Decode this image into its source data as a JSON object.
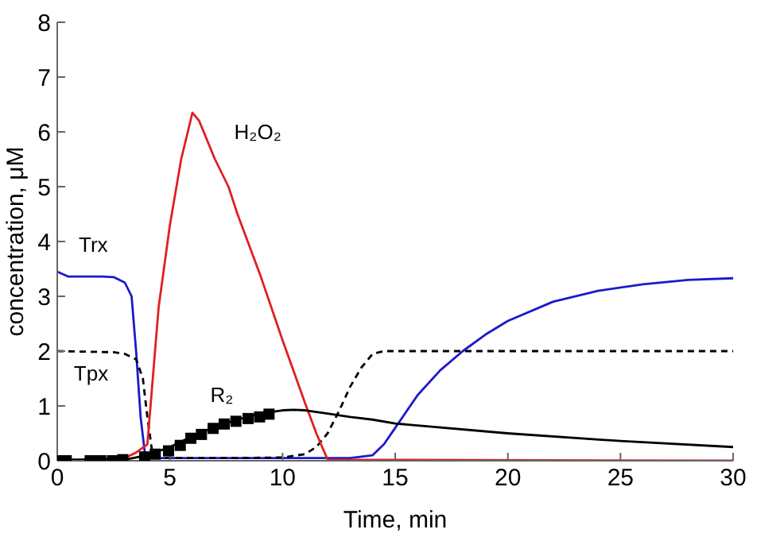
{
  "chart_data": {
    "type": "line",
    "xlabel": "Time, min",
    "ylabel": "concentration, μM",
    "xlim": [
      0,
      30
    ],
    "xticks": [
      0,
      5,
      10,
      15,
      20,
      25,
      30
    ],
    "ylim": [
      0,
      8
    ],
    "yticks": [
      0,
      1,
      2,
      3,
      4,
      5,
      6,
      7,
      8
    ],
    "grid": false,
    "legend": false,
    "marker": "none",
    "series": [
      {
        "name": "Trx",
        "color": "#1a1acc",
        "line_style": "solid",
        "x": [
          0,
          0.5,
          1,
          2,
          2.5,
          3,
          3.3,
          3.5,
          3.7,
          3.9,
          4,
          5,
          8,
          10,
          13,
          14,
          14.5,
          15,
          16,
          17,
          18,
          19,
          20,
          22,
          24,
          26,
          28,
          30
        ],
        "values": [
          3.45,
          3.36,
          3.36,
          3.36,
          3.35,
          3.25,
          3.0,
          2.0,
          0.8,
          0.1,
          0.05,
          0.05,
          0.05,
          0.05,
          0.05,
          0.1,
          0.3,
          0.6,
          1.2,
          1.65,
          2.0,
          2.3,
          2.55,
          2.9,
          3.1,
          3.22,
          3.3,
          3.33
        ]
      },
      {
        "name": "Tpx",
        "color": "#000000",
        "line_style": "dashed",
        "x": [
          0,
          2.5,
          3,
          3.5,
          3.8,
          4,
          4.2,
          4.5,
          8,
          10,
          11,
          11.5,
          12,
          12.5,
          13,
          13.5,
          14,
          14.5,
          30
        ],
        "values": [
          2.0,
          1.98,
          1.95,
          1.85,
          1.5,
          0.8,
          0.2,
          0.05,
          0.05,
          0.06,
          0.12,
          0.25,
          0.5,
          0.9,
          1.35,
          1.7,
          1.95,
          2.0,
          2.0
        ]
      },
      {
        "name": "H₂O₂",
        "color": "#e02020",
        "line_style": "solid",
        "x": [
          0,
          3,
          3.5,
          4,
          4.5,
          5,
          5.5,
          6,
          6.3,
          7,
          7.6,
          8,
          9,
          10,
          11,
          11.5,
          12,
          30
        ],
        "values": [
          0,
          0.05,
          0.15,
          0.3,
          2.8,
          4.3,
          5.5,
          6.35,
          6.2,
          5.5,
          5.0,
          4.5,
          3.4,
          2.2,
          1.05,
          0.5,
          0.02,
          0
        ]
      },
      {
        "name": "R₂",
        "color": "#000000",
        "line_style": "solid",
        "x": [
          0,
          3,
          4,
          5,
          6,
          7,
          8,
          9,
          10,
          10.5,
          11,
          12,
          13,
          14,
          15,
          20,
          25,
          30
        ],
        "values": [
          0.02,
          0.02,
          0.1,
          0.25,
          0.45,
          0.62,
          0.75,
          0.86,
          0.92,
          0.93,
          0.92,
          0.86,
          0.8,
          0.75,
          0.68,
          0.5,
          0.36,
          0.25
        ]
      },
      {
        "type": "scatter",
        "marker": "square",
        "color": "#000000",
        "x": [
          0,
          0.4,
          1.46,
          1.93,
          2.45,
          2.91,
          3.88,
          4.35,
          4.94,
          5.46,
          5.93,
          6.4,
          6.92,
          7.41,
          7.93,
          8.47,
          8.98,
          9.4
        ],
        "values": [
          0,
          0,
          0,
          0,
          0,
          0.02,
          0.07,
          0.12,
          0.18,
          0.28,
          0.41,
          0.48,
          0.59,
          0.67,
          0.72,
          0.77,
          0.8,
          0.85
        ]
      }
    ]
  }
}
